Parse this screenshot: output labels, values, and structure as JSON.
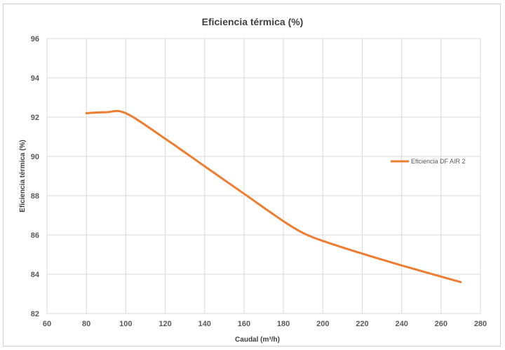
{
  "chart_data": {
    "type": "line",
    "title": "Eficiencia térmica (%)",
    "xlabel": "Caudal (m³/h)",
    "ylabel": "Eficiencia térmica (%)",
    "xlim": [
      60,
      280
    ],
    "ylim": [
      82,
      96
    ],
    "x_ticks": [
      60,
      80,
      100,
      120,
      140,
      160,
      180,
      200,
      220,
      240,
      260,
      280
    ],
    "y_ticks": [
      82,
      84,
      86,
      88,
      90,
      92,
      94,
      96
    ],
    "grid": true,
    "legend_position": "right",
    "series": [
      {
        "name": "Eficiencia DF AIR 2",
        "color": "#ED7D31",
        "x": [
          80,
          90,
          100,
          120,
          140,
          160,
          180,
          190,
          200,
          220,
          240,
          270
        ],
        "y": [
          92.2,
          92.25,
          92.2,
          90.9,
          89.5,
          88.1,
          86.7,
          86.1,
          85.7,
          85.05,
          84.45,
          83.6
        ]
      }
    ]
  }
}
